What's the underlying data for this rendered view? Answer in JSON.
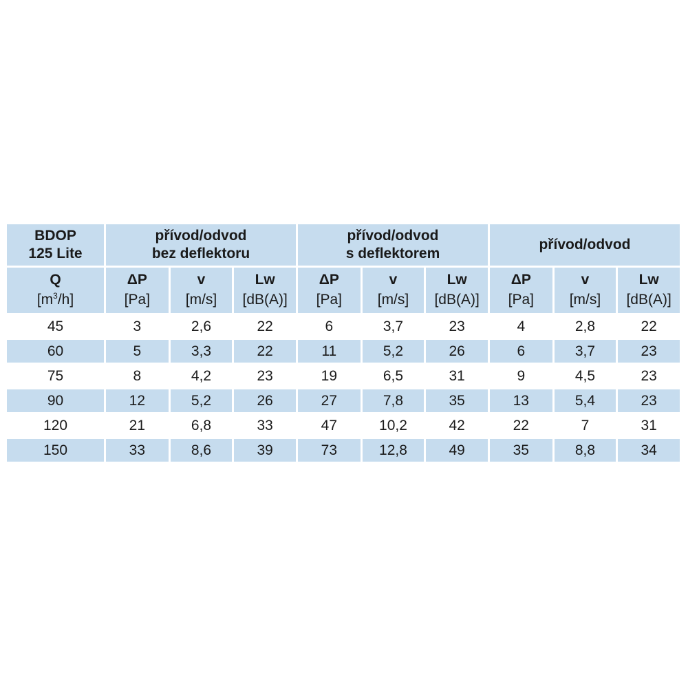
{
  "table": {
    "corner": {
      "line1": "BDOP",
      "line2": "125 Lite"
    },
    "groups": [
      {
        "line1": "přívod/odvod",
        "line2": "bez deflektoru"
      },
      {
        "line1": "přívod/odvod",
        "line2": "s deflektorem"
      },
      {
        "line1": "přívod/odvod",
        "line2": ""
      }
    ],
    "q_header": {
      "symbol": "Q",
      "unit_pre": "[m",
      "unit_sup": "3",
      "unit_post": "/h]"
    },
    "sub_headers": [
      {
        "symbol": "ΔP",
        "unit": "[Pa]"
      },
      {
        "symbol": "v",
        "unit": "[m/s]"
      },
      {
        "symbol": "Lw",
        "unit": "[dB(A)]"
      },
      {
        "symbol": "ΔP",
        "unit": "[Pa]"
      },
      {
        "symbol": "v",
        "unit": "[m/s]"
      },
      {
        "symbol": "Lw",
        "unit": "[dB(A)]"
      },
      {
        "symbol": "ΔP",
        "unit": "[Pa]"
      },
      {
        "symbol": "v",
        "unit": "[m/s]"
      },
      {
        "symbol": "Lw",
        "unit": "[dB(A)]"
      }
    ],
    "rows": [
      [
        "45",
        "3",
        "2,6",
        "22",
        "6",
        "3,7",
        "23",
        "4",
        "2,8",
        "22"
      ],
      [
        "60",
        "5",
        "3,3",
        "22",
        "11",
        "5,2",
        "26",
        "6",
        "3,7",
        "23"
      ],
      [
        "75",
        "8",
        "4,2",
        "23",
        "19",
        "6,5",
        "31",
        "9",
        "4,5",
        "23"
      ],
      [
        "90",
        "12",
        "5,2",
        "26",
        "27",
        "7,8",
        "35",
        "13",
        "5,4",
        "23"
      ],
      [
        "120",
        "21",
        "6,8",
        "33",
        "47",
        "10,2",
        "42",
        "22",
        "7",
        "31"
      ],
      [
        "150",
        "33",
        "8,6",
        "39",
        "73",
        "12,8",
        "49",
        "35",
        "8,8",
        "34"
      ]
    ],
    "colors": {
      "band": "#c6dcee",
      "background": "#ffffff",
      "text": "#1a1a1a"
    }
  }
}
